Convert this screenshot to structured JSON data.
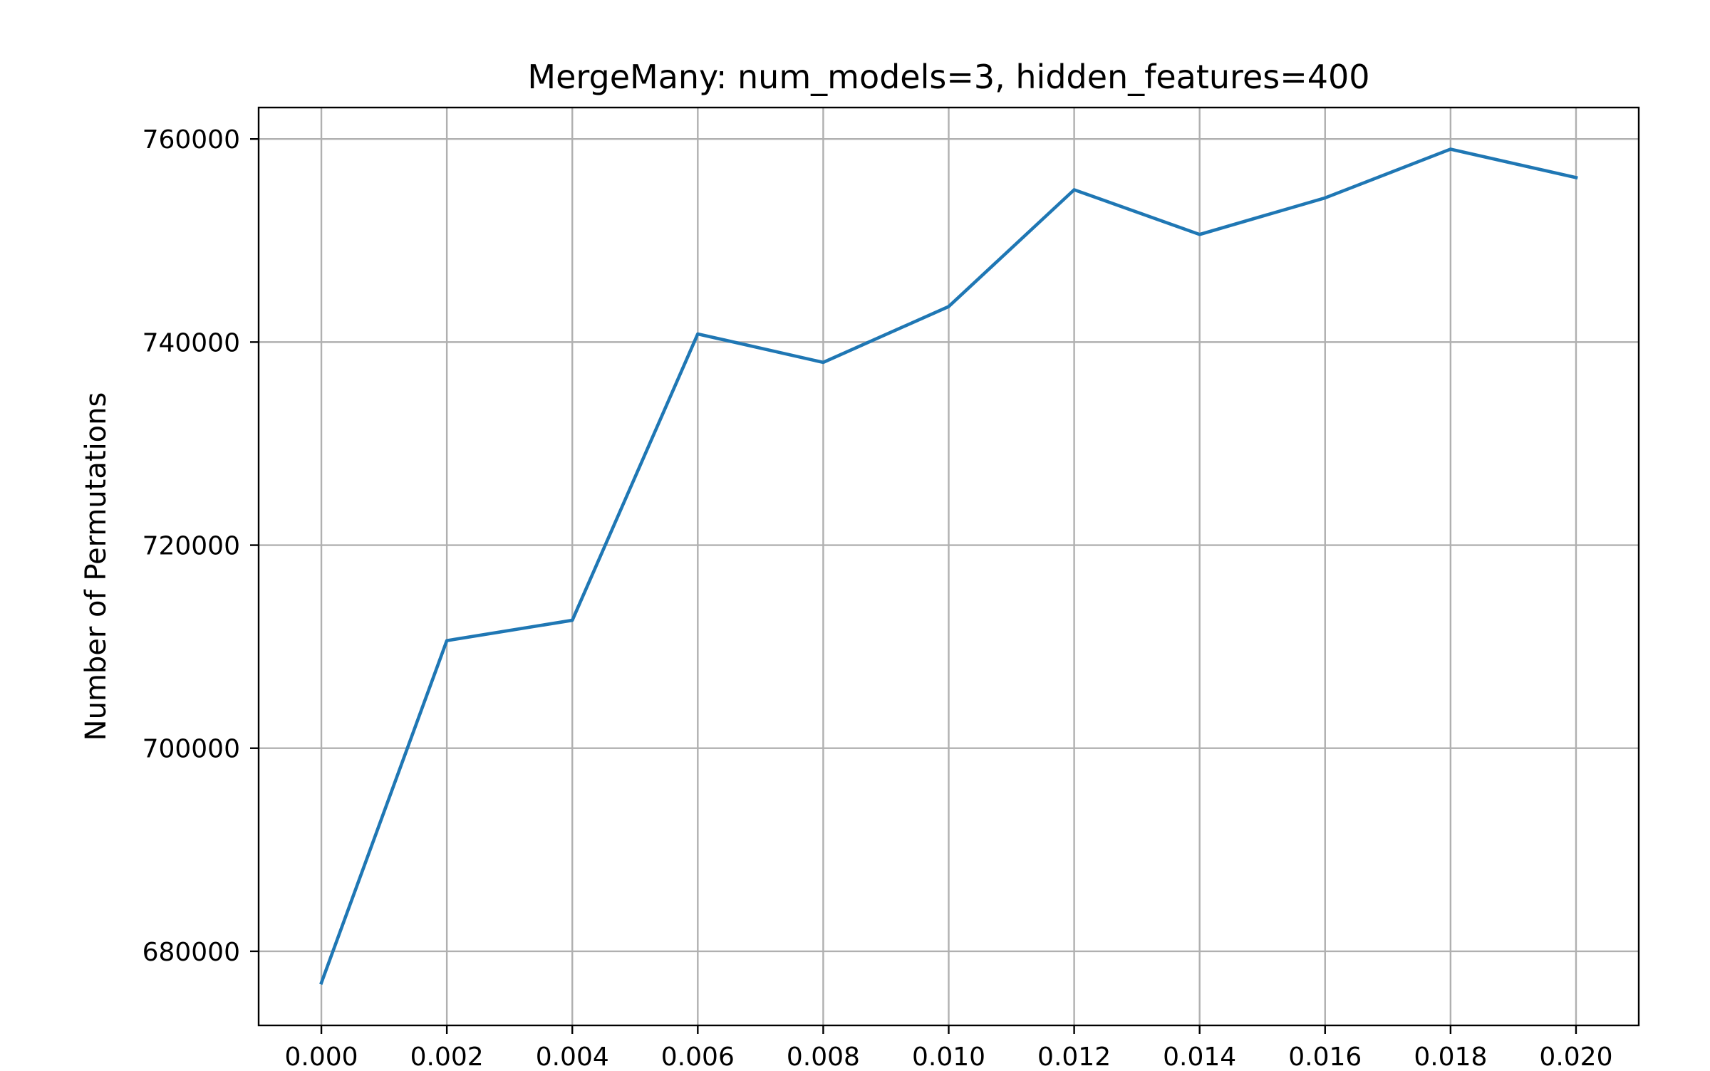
{
  "chart_data": {
    "type": "line",
    "title": "MergeMany: num_models=3, hidden_features=400",
    "xlabel": "",
    "ylabel": "Number of Permutations",
    "x": [
      0.0,
      0.002,
      0.004,
      0.006,
      0.008,
      0.01,
      0.012,
      0.014,
      0.016,
      0.018,
      0.02
    ],
    "series": [
      {
        "values": [
          676900,
          710600,
          712600,
          740800,
          738000,
          743500,
          755000,
          750600,
          754200,
          759000,
          756200
        ],
        "color": "#1f77b4"
      }
    ],
    "xlim": [
      -0.001,
      0.021
    ],
    "ylim": [
      672700,
      763100
    ],
    "xticks": [
      0.0,
      0.002,
      0.004,
      0.006,
      0.008,
      0.01,
      0.012,
      0.014,
      0.016,
      0.018,
      0.02
    ],
    "xtick_labels": [
      "0.000",
      "0.002",
      "0.004",
      "0.006",
      "0.008",
      "0.010",
      "0.012",
      "0.014",
      "0.016",
      "0.018",
      "0.020"
    ],
    "yticks": [
      680000,
      700000,
      720000,
      740000,
      760000
    ],
    "ytick_labels": [
      "680000",
      "700000",
      "720000",
      "740000",
      "760000"
    ],
    "grid": true,
    "legend": "none"
  }
}
